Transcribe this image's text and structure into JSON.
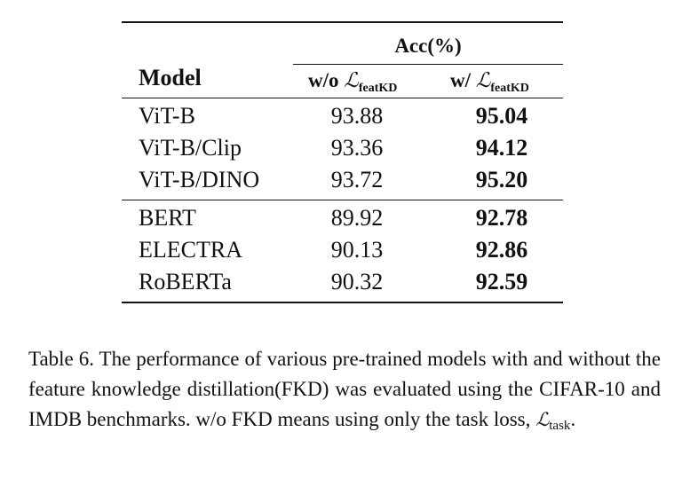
{
  "table": {
    "acc_header": "Acc(%)",
    "model_header": "Model",
    "col_without_prefix": "w/o ",
    "col_with_prefix": "w/ ",
    "loss_symbol": "ℒ",
    "loss_subscript": "featKD",
    "groups": [
      {
        "rows": [
          {
            "model": "ViT-B",
            "without": "93.88",
            "with": "95.04"
          },
          {
            "model": "ViT-B/Clip",
            "without": "93.36",
            "with": "94.12"
          },
          {
            "model": "ViT-B/DINO",
            "without": "93.72",
            "with": "95.20"
          }
        ]
      },
      {
        "rows": [
          {
            "model": "BERT",
            "without": "89.92",
            "with": "92.78"
          },
          {
            "model": "ELECTRA",
            "without": "90.13",
            "with": "92.86"
          },
          {
            "model": "RoBERTa",
            "without": "90.32",
            "with": "92.59"
          }
        ]
      }
    ]
  },
  "caption": {
    "text": "Table 6. The performance of various pre-trained models with and without the feature knowledge distillation(FKD) was evaluated using the CIFAR-10 and IMDB benchmarks. w/o FKD means using only the task loss, ",
    "loss_symbol": "ℒ",
    "loss_subscript": "task",
    "end": "."
  }
}
